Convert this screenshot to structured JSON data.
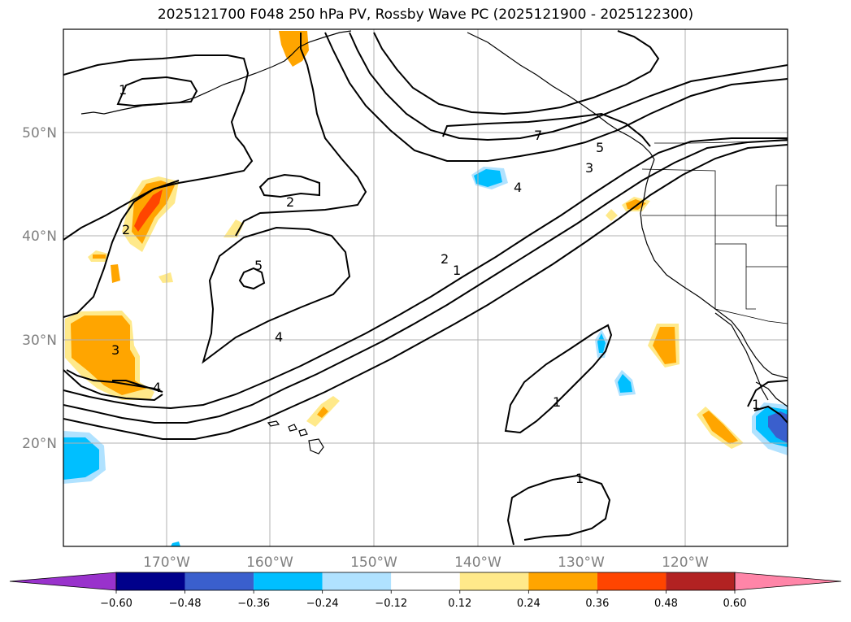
{
  "title": "2025121700 F048 250 hPa PV, Rossby Wave PC (2025121900 - 2025122300)",
  "axes": {
    "lat_labels": [
      "50°N",
      "40°N",
      "30°N",
      "20°N"
    ],
    "lon_labels": [
      "170°W",
      "160°W",
      "150°W",
      "140°W",
      "130°W",
      "120°W"
    ]
  },
  "colorbar": {
    "tick_labels": [
      "−0.60",
      "−0.48",
      "−0.36",
      "−0.24",
      "−0.12",
      "0.12",
      "0.24",
      "0.36",
      "0.48",
      "0.60"
    ],
    "colors": [
      "#9932cc",
      "#00008b",
      "#3a5fcd",
      "#00bfff",
      "#b0e2ff",
      "#ffffff",
      "#ffe98a",
      "#ffa500",
      "#ff4500",
      "#b22222",
      "#ff85a8"
    ]
  },
  "contour_labels": [
    "1",
    "2",
    "2",
    "3",
    "4",
    "5",
    "4",
    "7",
    "5",
    "3",
    "4",
    "2",
    "1",
    "1",
    "1",
    "1"
  ],
  "colors": {
    "land_outline": "#000000",
    "grid": "#b0b0b0"
  }
}
